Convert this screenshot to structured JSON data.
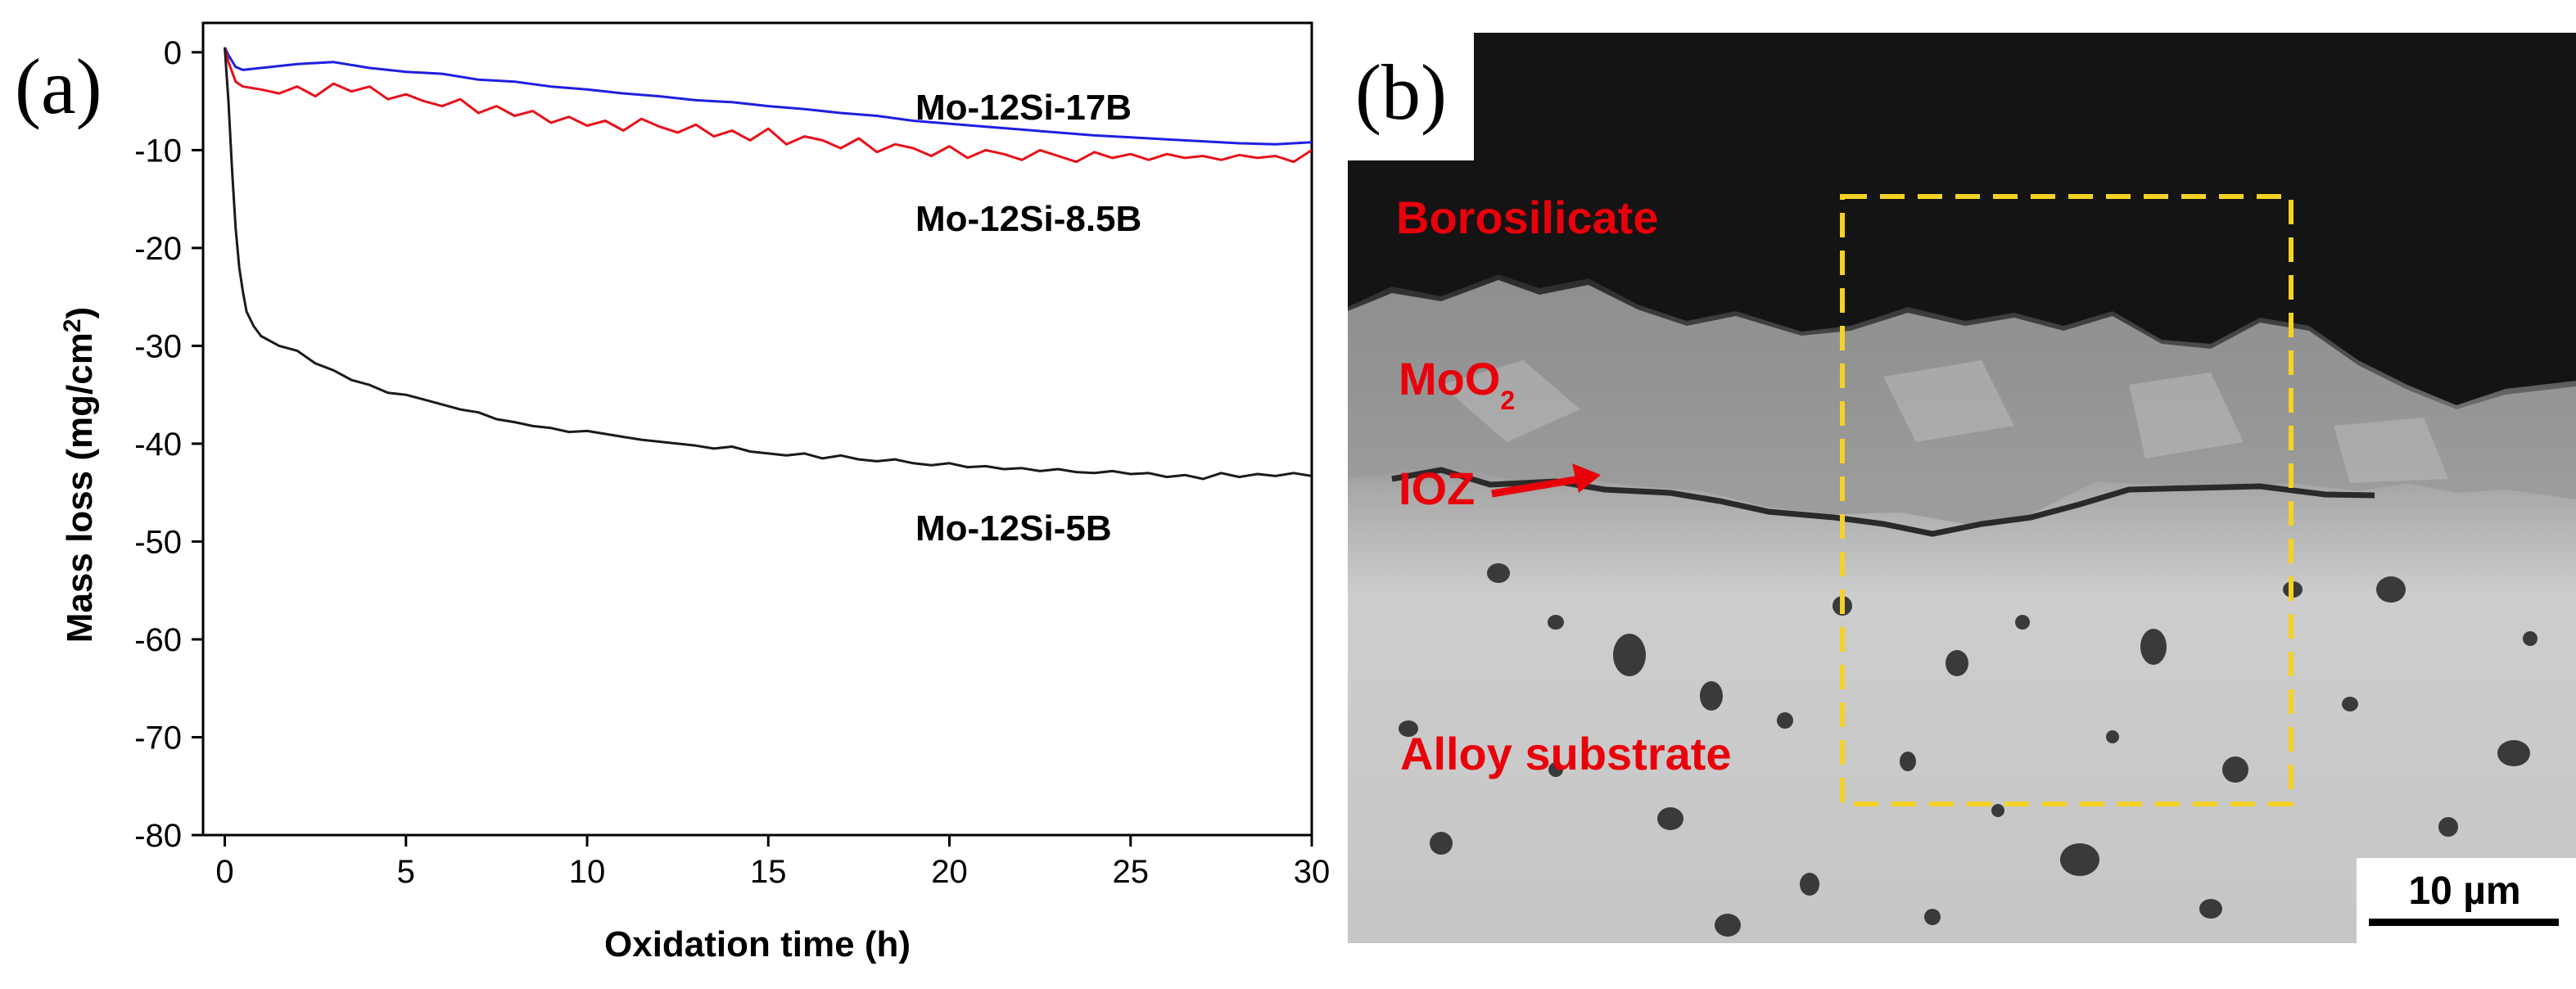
{
  "chart_data": {
    "type": "line",
    "panel_label": "(a)",
    "xlabel": "Oxidation time (h)",
    "ylabel_main": "Mass loss (mg/cm",
    "ylabel_sup": "2",
    "ylabel_end": ")",
    "xlim": [
      -0.6,
      30
    ],
    "ylim": [
      -80,
      3
    ],
    "x_ticks": [
      0,
      5,
      10,
      15,
      20,
      25,
      30
    ],
    "y_ticks": [
      0,
      -10,
      -20,
      -30,
      -40,
      -50,
      -60,
      -70,
      -80
    ],
    "grid": false,
    "series": [
      {
        "name": "Mo-12Si-17B",
        "color": "#1f1fe0",
        "x": [
          0,
          0.1,
          0.3,
          0.5,
          1,
          1.5,
          2,
          3,
          4,
          5,
          6,
          7,
          8,
          9,
          10,
          11,
          12,
          13,
          14,
          15,
          16,
          17,
          18,
          19,
          20,
          21,
          22,
          23,
          24,
          25,
          26,
          27,
          28,
          29,
          30
        ],
        "y": [
          0.5,
          -0.3,
          -1.5,
          -1.8,
          -1.6,
          -1.4,
          -1.2,
          -1.0,
          -1.6,
          -2.0,
          -2.2,
          -2.8,
          -3.0,
          -3.5,
          -3.8,
          -4.2,
          -4.5,
          -4.9,
          -5.1,
          -5.5,
          -5.8,
          -6.2,
          -6.5,
          -7.0,
          -7.3,
          -7.6,
          -7.9,
          -8.2,
          -8.5,
          -8.7,
          -8.9,
          -9.1,
          -9.3,
          -9.4,
          -9.2
        ]
      },
      {
        "name": "Mo-12Si-8.5B",
        "color": "#e8101a",
        "x": [
          0,
          0.1,
          0.3,
          0.5,
          1,
          1.5,
          2,
          2.5,
          3,
          3.5,
          4,
          4.5,
          5,
          5.5,
          6,
          6.5,
          7,
          7.5,
          8,
          8.5,
          9,
          9.5,
          10,
          10.5,
          11,
          11.5,
          12,
          12.5,
          13,
          13.5,
          14,
          14.5,
          15,
          15.5,
          16,
          16.5,
          17,
          17.5,
          18,
          18.5,
          19,
          19.5,
          20,
          20.5,
          21,
          21.5,
          22,
          22.5,
          23,
          23.5,
          24,
          24.5,
          25,
          25.5,
          26,
          26.5,
          27,
          27.5,
          28,
          28.5,
          29,
          29.5,
          30
        ],
        "y": [
          0.5,
          -1.0,
          -3.0,
          -3.5,
          -3.8,
          -4.2,
          -3.5,
          -4.5,
          -3.2,
          -4.0,
          -3.5,
          -4.8,
          -4.3,
          -5.0,
          -5.5,
          -4.8,
          -6.2,
          -5.5,
          -6.5,
          -6.0,
          -7.2,
          -6.6,
          -7.5,
          -7.0,
          -8.0,
          -6.8,
          -7.6,
          -8.2,
          -7.4,
          -8.6,
          -8.0,
          -9.0,
          -7.8,
          -9.4,
          -8.6,
          -9.0,
          -9.8,
          -8.8,
          -10.2,
          -9.4,
          -9.8,
          -10.6,
          -9.6,
          -10.8,
          -10.0,
          -10.4,
          -11.0,
          -10.0,
          -10.6,
          -11.2,
          -10.2,
          -10.8,
          -10.4,
          -11.0,
          -10.4,
          -10.8,
          -10.6,
          -11.0,
          -10.5,
          -10.8,
          -10.6,
          -11.2,
          -10.0
        ]
      },
      {
        "name": "Mo-12Si-5B",
        "color": "#1a1a1a",
        "x": [
          0,
          0.1,
          0.2,
          0.3,
          0.4,
          0.5,
          0.6,
          0.8,
          1,
          1.5,
          2,
          2.5,
          3,
          3.5,
          4,
          4.5,
          5,
          5.5,
          6,
          6.5,
          7,
          7.5,
          8,
          8.5,
          9,
          9.5,
          10,
          10.5,
          11,
          11.5,
          12,
          12.5,
          13,
          13.5,
          14,
          14.5,
          15,
          15.5,
          16,
          16.5,
          17,
          17.5,
          18,
          18.5,
          19,
          19.5,
          20,
          20.5,
          21,
          21.5,
          22,
          22.5,
          23,
          23.5,
          24,
          24.5,
          25,
          25.5,
          26,
          26.5,
          27,
          27.5,
          28,
          28.5,
          29,
          29.5,
          30
        ],
        "y": [
          0.5,
          -5,
          -12,
          -18,
          -22,
          -24.5,
          -26.5,
          -28,
          -29,
          -30,
          -30.5,
          -31.8,
          -32.5,
          -33.5,
          -34.0,
          -34.8,
          -35.0,
          -35.5,
          -36.0,
          -36.5,
          -36.8,
          -37.5,
          -37.8,
          -38.2,
          -38.4,
          -38.8,
          -38.7,
          -39.0,
          -39.3,
          -39.6,
          -39.8,
          -40.0,
          -40.2,
          -40.5,
          -40.3,
          -40.8,
          -41.0,
          -41.2,
          -41.0,
          -41.5,
          -41.2,
          -41.6,
          -41.8,
          -41.6,
          -42.0,
          -42.2,
          -42.0,
          -42.4,
          -42.3,
          -42.6,
          -42.5,
          -42.8,
          -42.6,
          -42.9,
          -43.0,
          -42.8,
          -43.1,
          -43.0,
          -43.4,
          -43.2,
          -43.6,
          -43.0,
          -43.4,
          -43.1,
          -43.3,
          -43.0,
          -43.3
        ]
      }
    ]
  },
  "micrograph": {
    "panel_label": "(b)",
    "labels": {
      "borosilicate": "Borosilicate",
      "mo_main": "MoO",
      "mo_sub": "2",
      "ioz": "IOZ",
      "alloy": "Alloy substrate"
    },
    "scale_bar": "10 µm",
    "colors": {
      "label": "#e8000b",
      "roi_box": "#f5d223"
    }
  }
}
